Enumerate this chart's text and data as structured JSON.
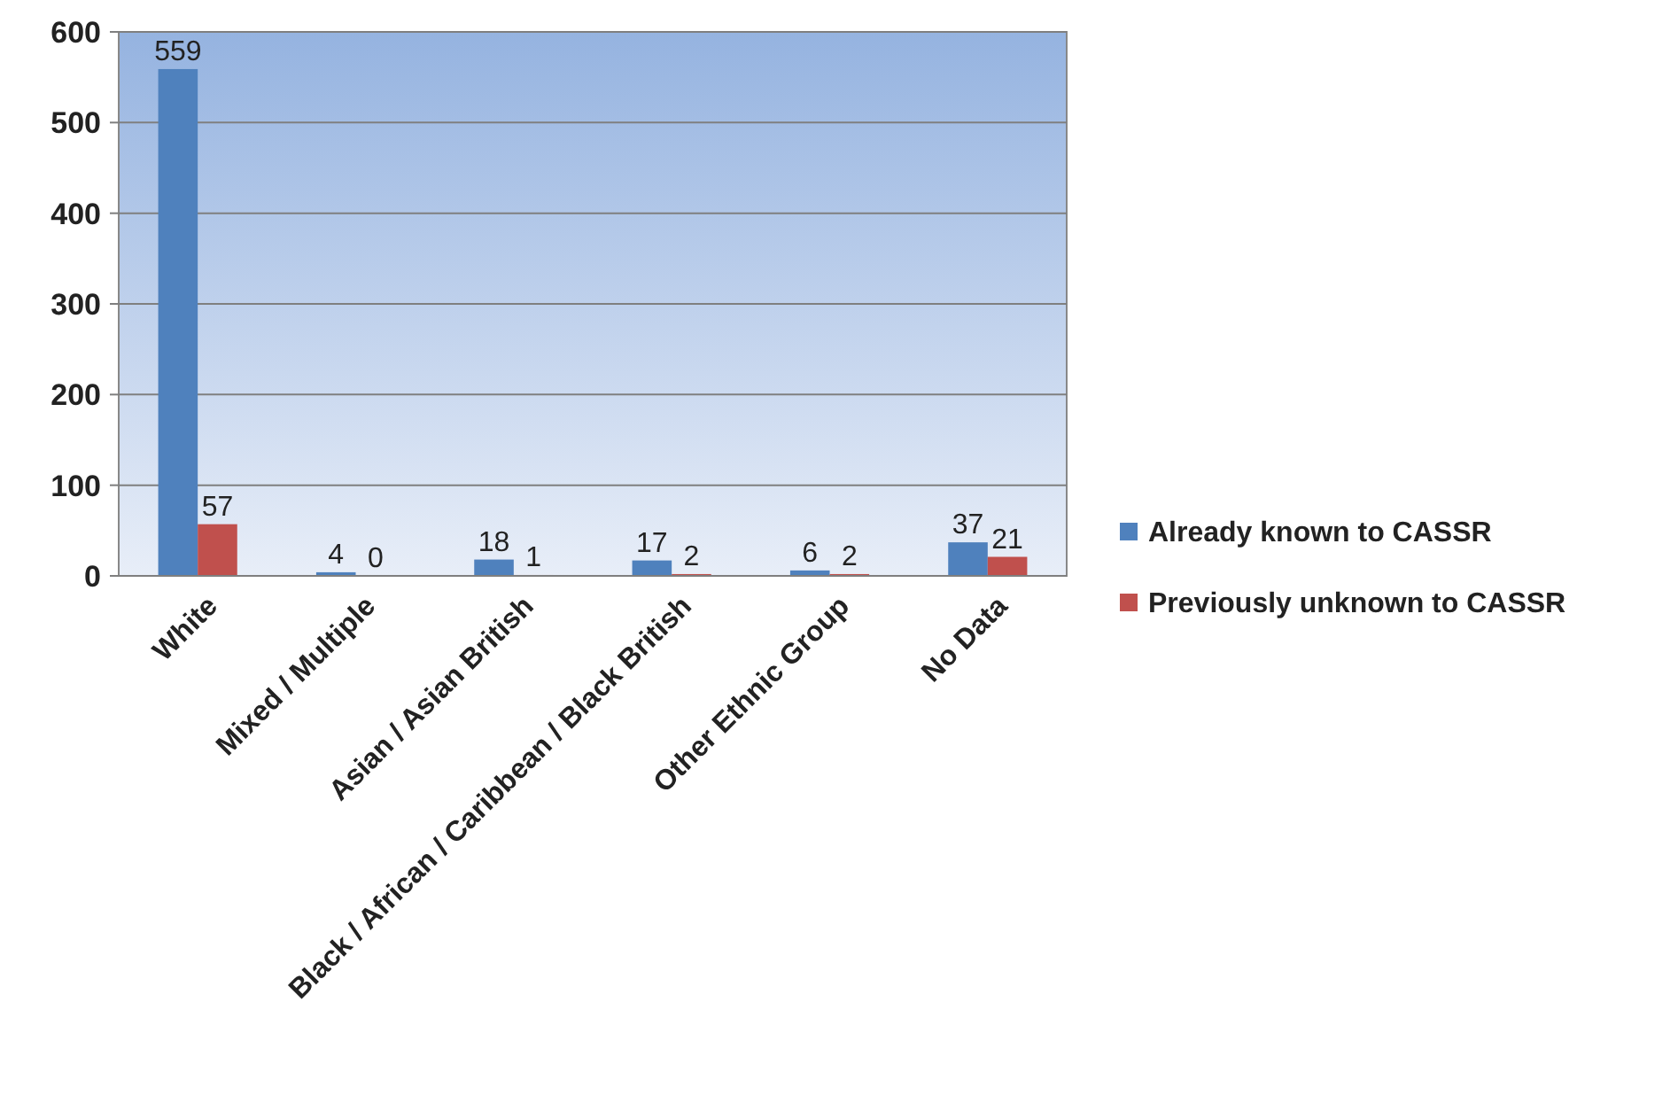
{
  "chart_data": {
    "type": "bar",
    "categories": [
      "White",
      "Mixed / Multiple",
      "Asian / Asian British",
      "Black / African / Caribbean / Black British",
      "Other Ethnic Group",
      "No Data"
    ],
    "series": [
      {
        "name": "Already known to CASSR",
        "color": "#4f81bd",
        "values": [
          559,
          4,
          18,
          17,
          6,
          37
        ]
      },
      {
        "name": "Previously unknown to CASSR",
        "color": "#c0504d",
        "values": [
          57,
          0,
          1,
          2,
          2,
          21
        ]
      }
    ],
    "ylim": [
      0,
      600
    ],
    "yticks": [
      0,
      100,
      200,
      300,
      400,
      500,
      600
    ],
    "grid": "y",
    "legend": "right",
    "data_labels": true
  }
}
